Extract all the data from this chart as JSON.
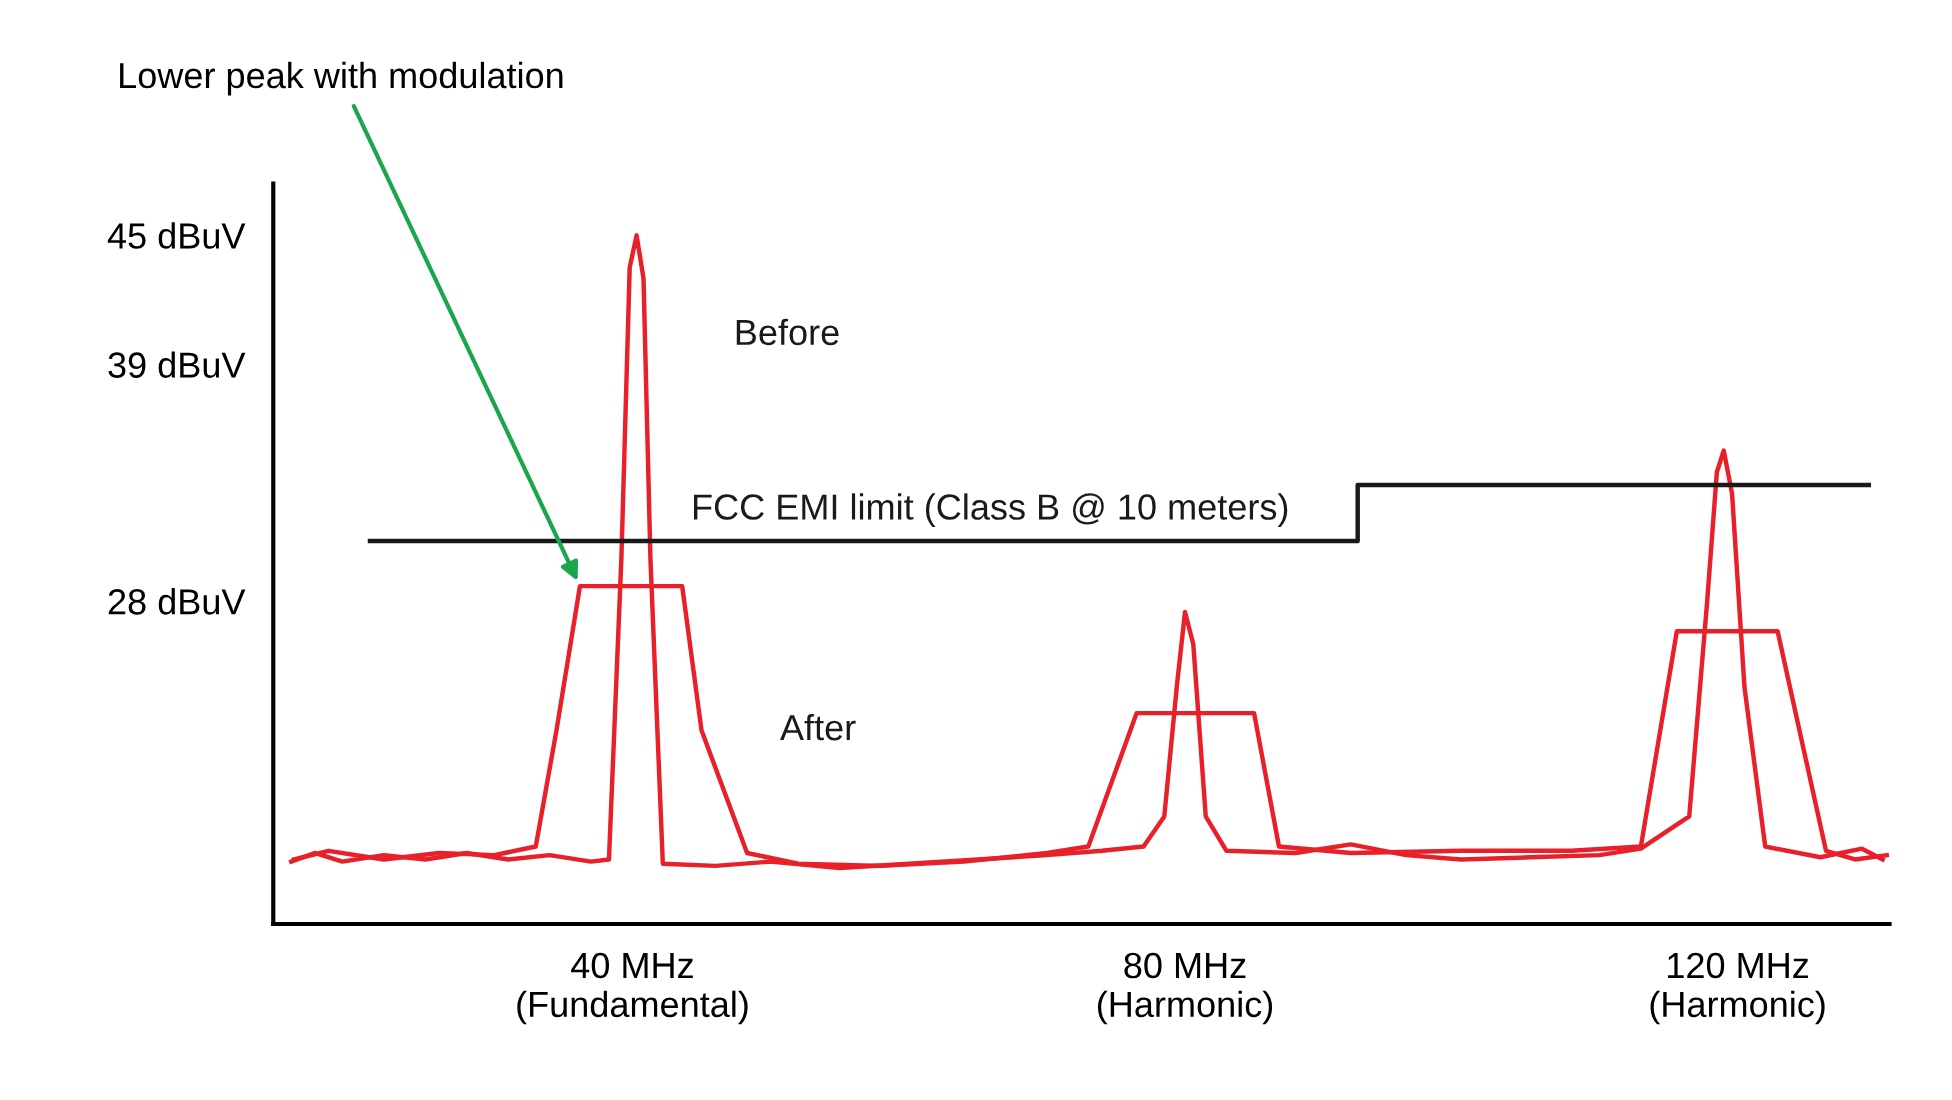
{
  "chart_data": {
    "type": "line",
    "xlim": [
      14,
      131
    ],
    "xticks": [
      {
        "value": 40,
        "label": "40 MHz\n(Fundamental)"
      },
      {
        "value": 80,
        "label": "80 MHz\n(Harmonic)"
      },
      {
        "value": 120,
        "label": "120 MHz\n(Harmonic)"
      }
    ],
    "ylim": [
      13,
      47.4
    ],
    "yticks": [
      {
        "value": 28,
        "label": "28 dBuV"
      },
      {
        "value": 39,
        "label": "39 dBuV"
      },
      {
        "value": 45,
        "label": "45 dBuV"
      }
    ],
    "grid": false,
    "marker": "none",
    "line_style": "solid",
    "series": [
      {
        "name": "Before",
        "color": "#e8202a",
        "x": [
          15.3,
          17,
          19,
          22,
          25,
          28,
          31,
          34,
          37,
          38.3,
          39.2,
          39.8,
          40.3,
          40.8,
          41.3,
          42.2,
          46,
          50,
          55,
          60,
          65,
          70,
          74,
          77,
          78.5,
          79.4,
          80,
          80.6,
          81.5,
          83,
          88,
          92,
          96,
          100,
          105,
          110,
          113,
          116.5,
          117.8,
          118.5,
          119,
          119.6,
          120.5,
          122,
          126,
          129,
          130.5
        ],
        "values": [
          15.9,
          16.3,
          15.9,
          16.2,
          16.0,
          16.3,
          16.0,
          16.2,
          15.9,
          16.0,
          30,
          43.5,
          45,
          43,
          30,
          15.8,
          15.7,
          15.9,
          15.6,
          15.8,
          16.0,
          16.2,
          16.4,
          16.6,
          18,
          24,
          27.5,
          26,
          18,
          16.4,
          16.3,
          16.7,
          16.2,
          16.0,
          16.1,
          16.2,
          16.5,
          18,
          28,
          34,
          35,
          33,
          24,
          16.6,
          16.1,
          16.5,
          16.0
        ]
      },
      {
        "name": "After",
        "color": "#e8202a",
        "x": [
          15.5,
          18,
          22,
          26,
          30,
          33,
          34.5,
          36.2,
          43.6,
          45,
          48.3,
          52,
          58,
          64,
          70,
          73,
          76.5,
          85,
          86.8,
          92,
          100,
          108,
          113,
          115.6,
          122.9,
          126.4,
          128.5,
          130.8
        ],
        "values": [
          16.0,
          16.4,
          16.0,
          16.3,
          16.2,
          16.6,
          22,
          28.7,
          28.7,
          22,
          16.3,
          15.8,
          15.7,
          15.9,
          16.3,
          16.6,
          22.8,
          22.8,
          16.6,
          16.3,
          16.4,
          16.4,
          16.6,
          26.6,
          26.6,
          16.4,
          16.0,
          16.2
        ]
      },
      {
        "name": "FCC EMI limit (Class B @ 10 meters)",
        "color": "#1a1a1a",
        "x": [
          21,
          92.5,
          92.5,
          129.5
        ],
        "values": [
          30.8,
          30.8,
          33.4,
          33.4
        ]
      }
    ],
    "annotations": [
      {
        "text": "Lower peak with modulation",
        "x": 36.2,
        "y": 28.7
      }
    ]
  }
}
